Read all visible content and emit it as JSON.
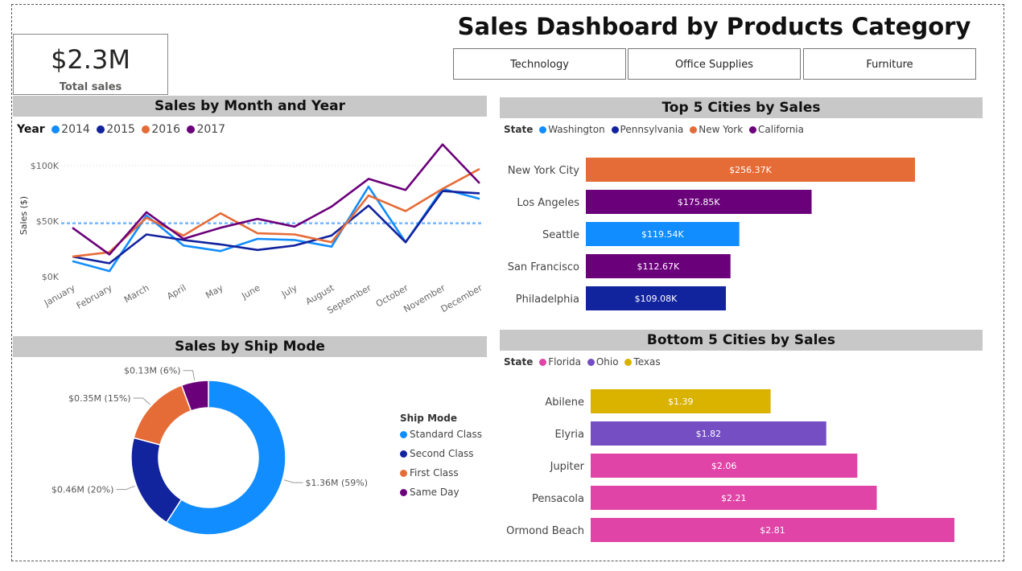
{
  "title": "Sales Dashboard by Products Category",
  "kpi": {
    "value": "$2.3M",
    "label": "Total sales"
  },
  "slicer": {
    "buttons": [
      "Technology",
      "Office Supplies",
      "Furniture"
    ]
  },
  "colors": {
    "c2014": "#118DFF",
    "c2015": "#12239E",
    "c2016": "#E66C37",
    "c2017": "#6B007B",
    "florida": "#E044A7",
    "ohio": "#744EC2",
    "texas": "#D9B300",
    "band": "#C8C8C8"
  },
  "chart_data": [
    {
      "id": "line",
      "type": "line",
      "title": "Sales by Month and Year",
      "ylabel": "Sales ($)",
      "xlabel": "",
      "legend_title": "Year",
      "legend_position": "top-left",
      "ylim": [
        0,
        110000
      ],
      "y_ticks": [
        0,
        50000,
        100000
      ],
      "y_tick_labels": [
        "$0K",
        "$50K",
        "$100K"
      ],
      "grid": true,
      "average_line": 48000,
      "categories": [
        "January",
        "February",
        "March",
        "April",
        "May",
        "June",
        "July",
        "August",
        "September",
        "October",
        "November",
        "December"
      ],
      "series": [
        {
          "name": "2014",
          "color": "#118DFF",
          "values": [
            14000,
            5000,
            55000,
            28000,
            23000,
            34000,
            33000,
            27000,
            81000,
            31000,
            79000,
            70000
          ]
        },
        {
          "name": "2015",
          "color": "#12239E",
          "values": [
            18000,
            12000,
            38000,
            33000,
            29000,
            24000,
            28000,
            37000,
            64000,
            31000,
            77000,
            75000
          ]
        },
        {
          "name": "2016",
          "color": "#E66C37",
          "values": [
            18000,
            22000,
            53000,
            37000,
            57000,
            39000,
            38000,
            31000,
            73000,
            59000,
            79000,
            97000
          ]
        },
        {
          "name": "2017",
          "color": "#6B007B",
          "values": [
            44000,
            20000,
            58000,
            34000,
            44000,
            52000,
            45000,
            63000,
            88000,
            78000,
            119000,
            84000
          ]
        }
      ]
    },
    {
      "id": "donut",
      "type": "pie",
      "title": "Sales by Ship Mode",
      "legend_title": "Ship Mode",
      "legend_position": "right",
      "categories": [
        "Standard Class",
        "Second Class",
        "First Class",
        "Same Day"
      ],
      "values": [
        1.36,
        0.46,
        0.35,
        0.13
      ],
      "unit": "$M",
      "labels": [
        "$1.36M (59%)",
        "$0.46M (20%)",
        "$0.35M (15%)",
        "$0.13M (6%)"
      ],
      "colors": [
        "#118DFF",
        "#12239E",
        "#E66C37",
        "#6B007B"
      ]
    },
    {
      "id": "top5",
      "type": "bar",
      "orientation": "horizontal",
      "title": "Top 5 Cities by Sales",
      "legend_title": "State",
      "legend_position": "top-left",
      "legend": [
        {
          "name": "Washington",
          "color": "#118DFF"
        },
        {
          "name": "Pennsylvania",
          "color": "#12239E"
        },
        {
          "name": "New York",
          "color": "#E66C37"
        },
        {
          "name": "California",
          "color": "#6B007B"
        }
      ],
      "categories": [
        "New York City",
        "Los Angeles",
        "Seattle",
        "San Francisco",
        "Philadelphia"
      ],
      "values": [
        256.37,
        175.85,
        119.54,
        112.67,
        109.08
      ],
      "unit": "K$",
      "value_labels": [
        "$256.37K",
        "$175.85K",
        "$119.54K",
        "$112.67K",
        "$109.08K"
      ],
      "colors": [
        "#E66C37",
        "#6B007B",
        "#118DFF",
        "#6B007B",
        "#12239E"
      ],
      "xlim": [
        0,
        262
      ]
    },
    {
      "id": "bottom5",
      "type": "bar",
      "orientation": "horizontal",
      "title": "Bottom 5 Cities by Sales",
      "legend_title": "State",
      "legend_position": "top-left",
      "legend": [
        {
          "name": "Florida",
          "color": "#E044A7"
        },
        {
          "name": "Ohio",
          "color": "#744EC2"
        },
        {
          "name": "Texas",
          "color": "#D9B300"
        }
      ],
      "categories": [
        "Abilene",
        "Elyria",
        "Jupiter",
        "Pensacola",
        "Ormond Beach"
      ],
      "values": [
        1.39,
        1.82,
        2.06,
        2.21,
        2.81
      ],
      "unit": "$",
      "value_labels": [
        "$1.39",
        "$1.82",
        "$2.06",
        "$2.21",
        "$2.81"
      ],
      "colors": [
        "#D9B300",
        "#744EC2",
        "#E044A7",
        "#E044A7",
        "#E044A7"
      ],
      "xlim": [
        0,
        2.81
      ]
    }
  ]
}
